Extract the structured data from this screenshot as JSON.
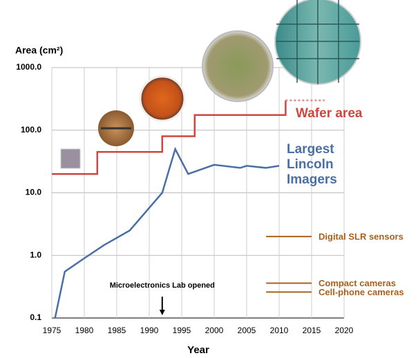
{
  "chart_data": {
    "type": "line",
    "y_label": "Area (cm²)",
    "x_label": "Year",
    "xlim": [
      1975,
      2020
    ],
    "xticks": [
      1975,
      1980,
      1985,
      1990,
      1995,
      2000,
      2005,
      2010,
      2015,
      2020
    ],
    "ylim": [
      0.1,
      1000
    ],
    "y_scale": "log",
    "yticks": [
      {
        "value": 0.1,
        "label": "0.1"
      },
      {
        "value": 1,
        "label": "1.0"
      },
      {
        "value": 10,
        "label": "10.0"
      },
      {
        "value": 100,
        "label": "100.0"
      },
      {
        "value": 1000,
        "label": "1000.0"
      }
    ],
    "grid": true,
    "series": [
      {
        "name": "Wafer area",
        "color": "#d0463c",
        "style": "solid",
        "x": [
          1975,
          1982,
          1982,
          1992,
          1992,
          1997,
          1997,
          2011,
          2011
        ],
        "values": [
          20,
          20,
          45,
          45,
          80,
          80,
          175,
          175,
          300
        ]
      },
      {
        "color": "#e08a84",
        "style": "dotted",
        "x": [
          2011,
          2017
        ],
        "values": [
          300,
          300
        ]
      },
      {
        "name": "Largest Lincoln Imagers",
        "color": "#4a6fa5",
        "style": "solid",
        "x": [
          1975.5,
          1977,
          1980,
          1983,
          1987,
          1992,
          1994,
          1996,
          2000,
          2004,
          2005,
          2008,
          2010
        ],
        "values": [
          0.1,
          0.55,
          0.9,
          1.45,
          2.5,
          10,
          50,
          20,
          28,
          25,
          27,
          25,
          27
        ]
      }
    ],
    "reference_lines": [
      {
        "label": "Digital SLR sensors",
        "value": 2,
        "x": [
          2008,
          2015
        ],
        "color": "#a8601e"
      },
      {
        "label": "Compact cameras",
        "value": 0.36,
        "x": [
          2008,
          2015
        ],
        "color": "#a8601e"
      },
      {
        "label": "Cell-phone cameras",
        "value": 0.26,
        "x": [
          2008,
          2015
        ],
        "color": "#a8601e"
      }
    ],
    "annotations": [
      {
        "text": "Microelectronics Lab opened",
        "x": 1992
      }
    ]
  }
}
